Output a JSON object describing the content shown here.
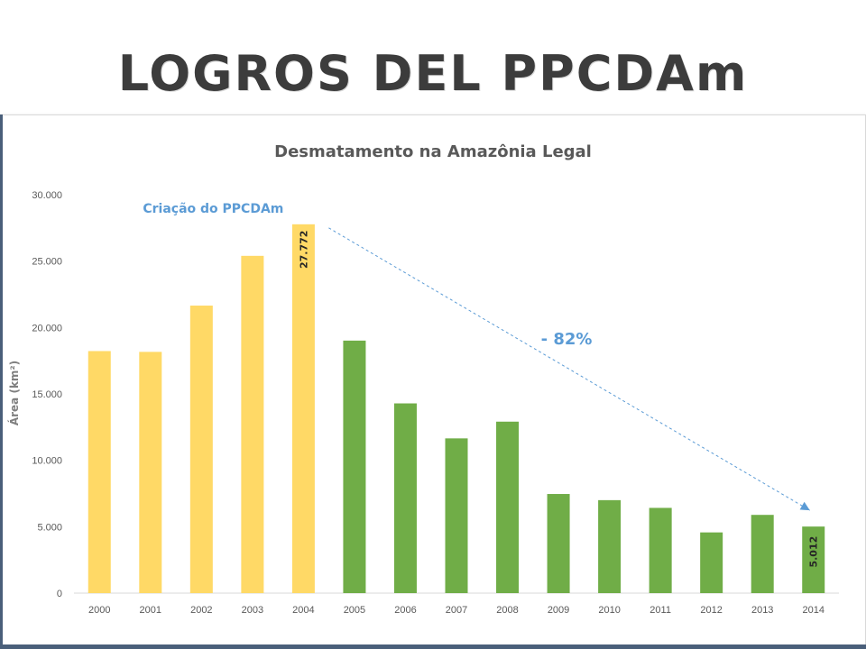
{
  "slide": {
    "title": "LOGROS DEL PPCDAm"
  },
  "chart_data": {
    "type": "bar",
    "title": "Desmatamento na Amazônia Legal",
    "xlabel": "",
    "ylabel": "Área (km²)",
    "ylim": [
      0,
      30000
    ],
    "yticks": [
      0,
      5000,
      10000,
      15000,
      20000,
      25000,
      30000
    ],
    "ytick_labels": [
      "0",
      "5.000",
      "10.000",
      "15.000",
      "20.000",
      "25.000",
      "30.000"
    ],
    "categories": [
      "2000",
      "2001",
      "2002",
      "2003",
      "2004",
      "2005",
      "2006",
      "2007",
      "2008",
      "2009",
      "2010",
      "2011",
      "2012",
      "2013",
      "2014"
    ],
    "values": [
      18226,
      18165,
      21650,
      25396,
      27772,
      19014,
      14286,
      11651,
      12911,
      7464,
      7000,
      6418,
      4571,
      5891,
      5012
    ],
    "bar_colors": [
      "#ffd966",
      "#ffd966",
      "#ffd966",
      "#ffd966",
      "#ffd966",
      "#70ad47",
      "#70ad47",
      "#70ad47",
      "#70ad47",
      "#70ad47",
      "#70ad47",
      "#70ad47",
      "#70ad47",
      "#70ad47",
      "#70ad47"
    ],
    "data_labels": [
      {
        "category": "2004",
        "text": "27.772"
      },
      {
        "category": "2014",
        "text": "5.012"
      }
    ],
    "annotations": {
      "creation_text": "Criação do PPCDAm",
      "reduction_text": "- 82%",
      "arrow_from": "2004",
      "arrow_to": "2014",
      "color": "#5b9bd5"
    },
    "grid": false,
    "legend": "none"
  }
}
